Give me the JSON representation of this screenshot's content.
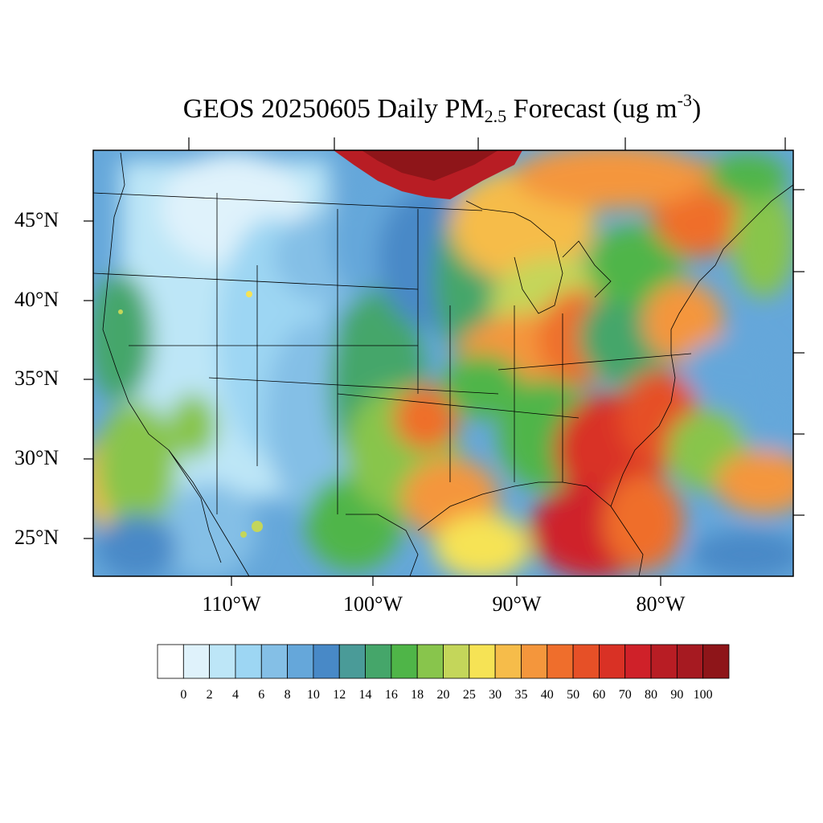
{
  "title": {
    "main": "GEOS 20250605 Daily PM",
    "subscript": "2.5",
    "middle": " Forecast (ug m",
    "superscript": "-3",
    "end": ")"
  },
  "map": {
    "projection": "lat-lon",
    "lon_range": [
      -125,
      -66
    ],
    "lat_range": [
      22.5,
      49.5
    ],
    "lat_ticks": [
      "45°N",
      "40°N",
      "35°N",
      "30°N",
      "25°N"
    ],
    "lon_ticks": [
      "110°W",
      "100°W",
      "90°W",
      "80°W"
    ]
  },
  "colorbar": {
    "labels": [
      "0",
      "2",
      "4",
      "6",
      "8",
      "10",
      "12",
      "14",
      "16",
      "18",
      "20",
      "25",
      "30",
      "35",
      "40",
      "50",
      "60",
      "70",
      "80",
      "90",
      "100"
    ],
    "colors": [
      "#ffffff",
      "#dff2fb",
      "#bde6f7",
      "#9dd6f3",
      "#84bfe6",
      "#65a7da",
      "#4889c7",
      "#4a9b98",
      "#45a66a",
      "#4fb548",
      "#88c54c",
      "#c4d65a",
      "#f6e355",
      "#f6bc4a",
      "#f4963c",
      "#ef6e2c",
      "#e65027",
      "#d93125",
      "#cf2129",
      "#b81d24",
      "#a61a21",
      "#8e1519"
    ]
  },
  "icons": {
    "map_field": "pm25-concentration-field",
    "coastlines": "coastline-state-boundary-overlay"
  }
}
